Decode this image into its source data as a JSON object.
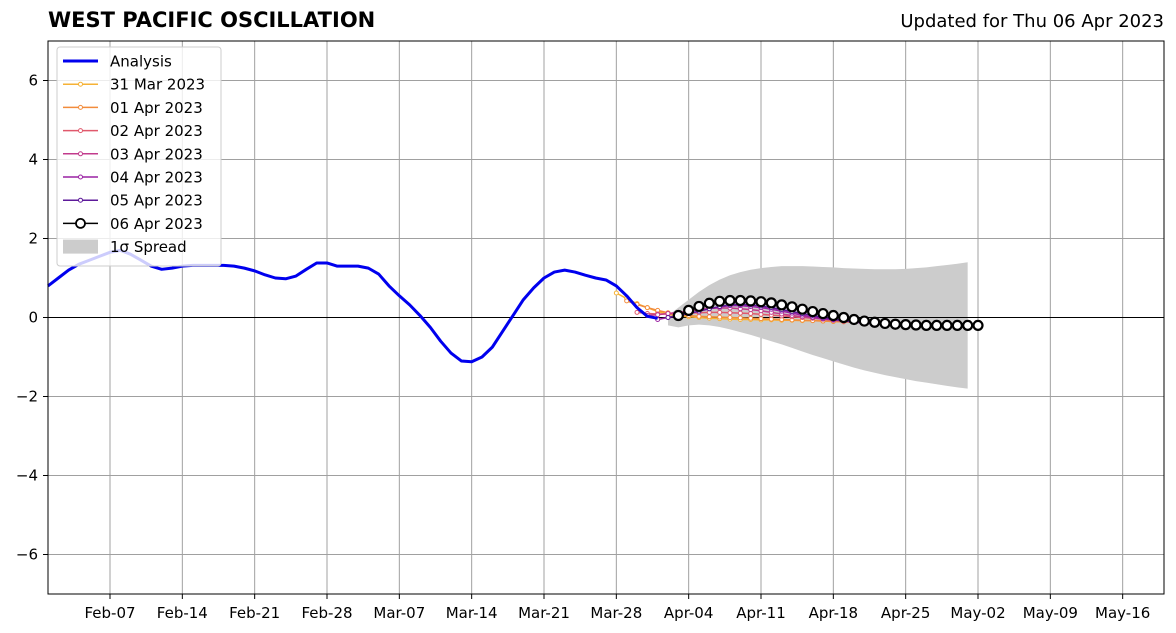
{
  "page": {
    "title": "WEST PACIFIC OSCILLATION",
    "updated": "Updated for Thu 06 Apr 2023"
  },
  "chart_data": {
    "type": "line",
    "title": "WEST PACIFIC OSCILLATION",
    "xlabel": "",
    "ylabel": "",
    "x_start": "2023-02-01",
    "xlim_days": [
      0,
      108
    ],
    "ylim": [
      -7,
      7
    ],
    "grid": true,
    "legend_placement": "top-left",
    "x_ticks": [
      {
        "day": 6,
        "label": "Feb-07"
      },
      {
        "day": 13,
        "label": "Feb-14"
      },
      {
        "day": 20,
        "label": "Feb-21"
      },
      {
        "day": 27,
        "label": "Feb-28"
      },
      {
        "day": 34,
        "label": "Mar-07"
      },
      {
        "day": 41,
        "label": "Mar-14"
      },
      {
        "day": 48,
        "label": "Mar-21"
      },
      {
        "day": 55,
        "label": "Mar-28"
      },
      {
        "day": 62,
        "label": "Apr-04"
      },
      {
        "day": 69,
        "label": "Apr-11"
      },
      {
        "day": 76,
        "label": "Apr-18"
      },
      {
        "day": 83,
        "label": "Apr-25"
      },
      {
        "day": 90,
        "label": "May-02"
      },
      {
        "day": 97,
        "label": "May-09"
      },
      {
        "day": 104,
        "label": "May-16"
      }
    ],
    "y_ticks": [
      {
        "value": -6,
        "label": "−6"
      },
      {
        "value": -4,
        "label": "−4"
      },
      {
        "value": -2,
        "label": "−2"
      },
      {
        "value": 0,
        "label": "0"
      },
      {
        "value": 2,
        "label": "2"
      },
      {
        "value": 4,
        "label": "4"
      },
      {
        "value": 6,
        "label": "6"
      }
    ],
    "analysis": {
      "name": "Analysis",
      "color": "#0000ee",
      "start_day": 0,
      "values": [
        0.8,
        1.0,
        1.2,
        1.35,
        1.45,
        1.55,
        1.65,
        1.7,
        1.6,
        1.45,
        1.3,
        1.22,
        1.25,
        1.3,
        1.32,
        1.32,
        1.32,
        1.32,
        1.3,
        1.25,
        1.18,
        1.08,
        1.0,
        0.98,
        1.05,
        1.22,
        1.38,
        1.38,
        1.3,
        1.3,
        1.3,
        1.25,
        1.1,
        0.8,
        0.55,
        0.32,
        0.05,
        -0.25,
        -0.6,
        -0.9,
        -1.1,
        -1.12,
        -1.0,
        -0.75,
        -0.35,
        0.05,
        0.45,
        0.75,
        1.0,
        1.15,
        1.2,
        1.15,
        1.07,
        1.0,
        0.95,
        0.8,
        0.55,
        0.25,
        0.03,
        -0.02
      ]
    },
    "spread": {
      "name": "1σ Spread",
      "color": "#cccccc",
      "start_day": 60,
      "upper": [
        0.05,
        0.25,
        0.45,
        0.65,
        0.82,
        0.96,
        1.07,
        1.15,
        1.21,
        1.25,
        1.28,
        1.3,
        1.3,
        1.3,
        1.29,
        1.28,
        1.27,
        1.25,
        1.24,
        1.23,
        1.22,
        1.22,
        1.22,
        1.23,
        1.25,
        1.27,
        1.3,
        1.33,
        1.36,
        1.4
      ],
      "lower": [
        -0.2,
        -0.25,
        -0.2,
        -0.18,
        -0.2,
        -0.24,
        -0.3,
        -0.37,
        -0.44,
        -0.52,
        -0.6,
        -0.68,
        -0.77,
        -0.86,
        -0.95,
        -1.03,
        -1.11,
        -1.19,
        -1.27,
        -1.34,
        -1.4,
        -1.46,
        -1.51,
        -1.56,
        -1.61,
        -1.65,
        -1.69,
        -1.73,
        -1.77,
        -1.8
      ]
    },
    "forecasts": [
      {
        "name": "31 Mar 2023",
        "color": "#f6b235",
        "start_day": 55,
        "values": [
          0.62,
          0.48,
          0.35,
          0.25,
          0.15,
          0.08,
          0.04,
          0.02,
          0.0,
          -0.02,
          -0.03,
          -0.04,
          -0.05,
          -0.05,
          -0.06,
          -0.06,
          -0.07,
          -0.07,
          -0.08,
          -0.08,
          -0.09,
          -0.1,
          -0.1,
          -0.11,
          -0.11,
          -0.12,
          -0.13
        ]
      },
      {
        "name": "01 Apr 2023",
        "color": "#f28c3c",
        "start_day": 56,
        "values": [
          0.42,
          0.33,
          0.25,
          0.18,
          0.12,
          0.08,
          0.05,
          0.03,
          0.02,
          0.01,
          0.0,
          -0.01,
          -0.02,
          -0.03,
          -0.04,
          -0.05,
          -0.06,
          -0.07,
          -0.08,
          -0.09,
          -0.1,
          -0.11,
          -0.12,
          -0.13,
          -0.14,
          -0.15
        ]
      },
      {
        "name": "02 Apr 2023",
        "color": "#e0596c",
        "start_day": 57,
        "values": [
          0.13,
          0.1,
          0.09,
          0.09,
          0.1,
          0.11,
          0.12,
          0.13,
          0.13,
          0.12,
          0.11,
          0.1,
          0.08,
          0.06,
          0.04,
          0.02,
          0.0,
          -0.02,
          -0.04,
          -0.06,
          -0.08,
          -0.1,
          -0.12,
          -0.14,
          -0.15
        ]
      },
      {
        "name": "03 Apr 2023",
        "color": "#c23b8c",
        "start_day": 58,
        "values": [
          0.05,
          0.07,
          0.1,
          0.13,
          0.16,
          0.2,
          0.23,
          0.24,
          0.24,
          0.22,
          0.2,
          0.17,
          0.13,
          0.09,
          0.05,
          0.02,
          -0.01,
          -0.04,
          -0.07,
          -0.09,
          -0.11,
          -0.13,
          -0.15,
          -0.16
        ]
      },
      {
        "name": "04 Apr 2023",
        "color": "#9a22a3",
        "start_day": 59,
        "values": [
          -0.05,
          0.0,
          0.05,
          0.1,
          0.16,
          0.22,
          0.27,
          0.3,
          0.3,
          0.28,
          0.25,
          0.21,
          0.16,
          0.11,
          0.06,
          0.01,
          -0.03,
          -0.06,
          -0.09,
          -0.12,
          -0.14,
          -0.16,
          -0.18
        ]
      },
      {
        "name": "05 Apr 2023",
        "color": "#5d1a9a",
        "start_day": 60,
        "values": [
          0.0,
          0.05,
          0.1,
          0.16,
          0.22,
          0.28,
          0.32,
          0.33,
          0.32,
          0.29,
          0.25,
          0.2,
          0.15,
          0.1,
          0.05,
          0.0,
          -0.04,
          -0.08,
          -0.11,
          -0.14,
          -0.16,
          -0.18
        ]
      }
    ],
    "forecast_current": {
      "name": "06 Apr 2023",
      "color": "#000000",
      "start_day": 61,
      "values": [
        0.05,
        0.18,
        0.28,
        0.36,
        0.41,
        0.43,
        0.43,
        0.42,
        0.4,
        0.37,
        0.32,
        0.27,
        0.21,
        0.15,
        0.1,
        0.05,
        0.0,
        -0.05,
        -0.09,
        -0.12,
        -0.15,
        -0.17,
        -0.18,
        -0.19,
        -0.2,
        -0.2,
        -0.2,
        -0.2,
        -0.2,
        -0.2
      ]
    }
  }
}
